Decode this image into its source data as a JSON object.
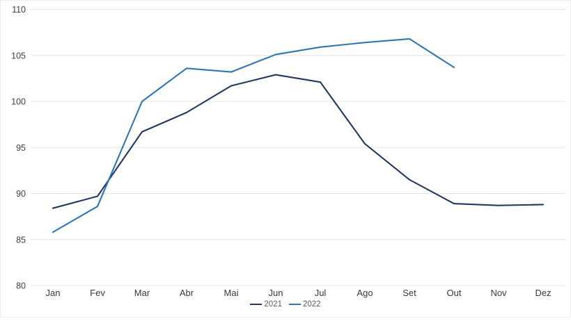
{
  "chart_data": {
    "type": "line",
    "title": "",
    "xlabel": "",
    "ylabel": "",
    "categories": [
      "Jan",
      "Fev",
      "Mar",
      "Abr",
      "Mai",
      "Jun",
      "Jul",
      "Ago",
      "Set",
      "Out",
      "Nov",
      "Dez"
    ],
    "series": [
      {
        "name": "2021",
        "color": "#203864",
        "values": [
          88.4,
          89.7,
          96.7,
          98.8,
          101.7,
          102.9,
          102.1,
          95.4,
          91.5,
          88.9,
          88.7,
          88.8
        ]
      },
      {
        "name": "2022",
        "color": "#2e75b6",
        "values": [
          85.8,
          88.6,
          100.0,
          103.6,
          103.2,
          105.1,
          105.9,
          106.4,
          106.8,
          103.7,
          null,
          null
        ]
      }
    ],
    "ylim": [
      80,
      110
    ],
    "yticks": [
      80,
      85,
      90,
      95,
      100,
      105,
      110
    ],
    "grid": true,
    "legend_position": "bottom"
  }
}
